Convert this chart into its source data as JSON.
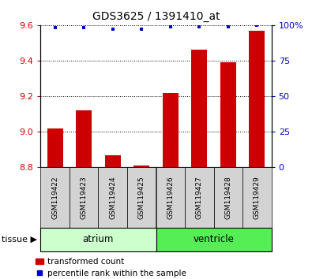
{
  "title": "GDS3625 / 1391410_at",
  "samples": [
    "GSM119422",
    "GSM119423",
    "GSM119424",
    "GSM119425",
    "GSM119426",
    "GSM119427",
    "GSM119428",
    "GSM119429"
  ],
  "bar_values": [
    9.02,
    9.12,
    8.87,
    8.81,
    9.22,
    9.46,
    9.39,
    9.57
  ],
  "percentile_values": [
    98,
    98,
    97,
    97,
    99,
    99,
    99,
    100
  ],
  "bar_bottom": 8.8,
  "ylim": [
    8.8,
    9.6
  ],
  "yticks_left": [
    8.8,
    9.0,
    9.2,
    9.4,
    9.6
  ],
  "yticks_right": [
    0,
    25,
    50,
    75,
    100
  ],
  "bar_color": "#cc0000",
  "dot_color": "#0000cc",
  "tissue_groups": [
    {
      "label": "atrium",
      "start": 0,
      "end": 3,
      "color": "#ccffcc"
    },
    {
      "label": "ventricle",
      "start": 4,
      "end": 7,
      "color": "#55ee55"
    }
  ],
  "tissue_label": "tissue",
  "legend_bar_label": "transformed count",
  "legend_dot_label": "percentile rank within the sample",
  "label_area_color": "#d3d3d3"
}
